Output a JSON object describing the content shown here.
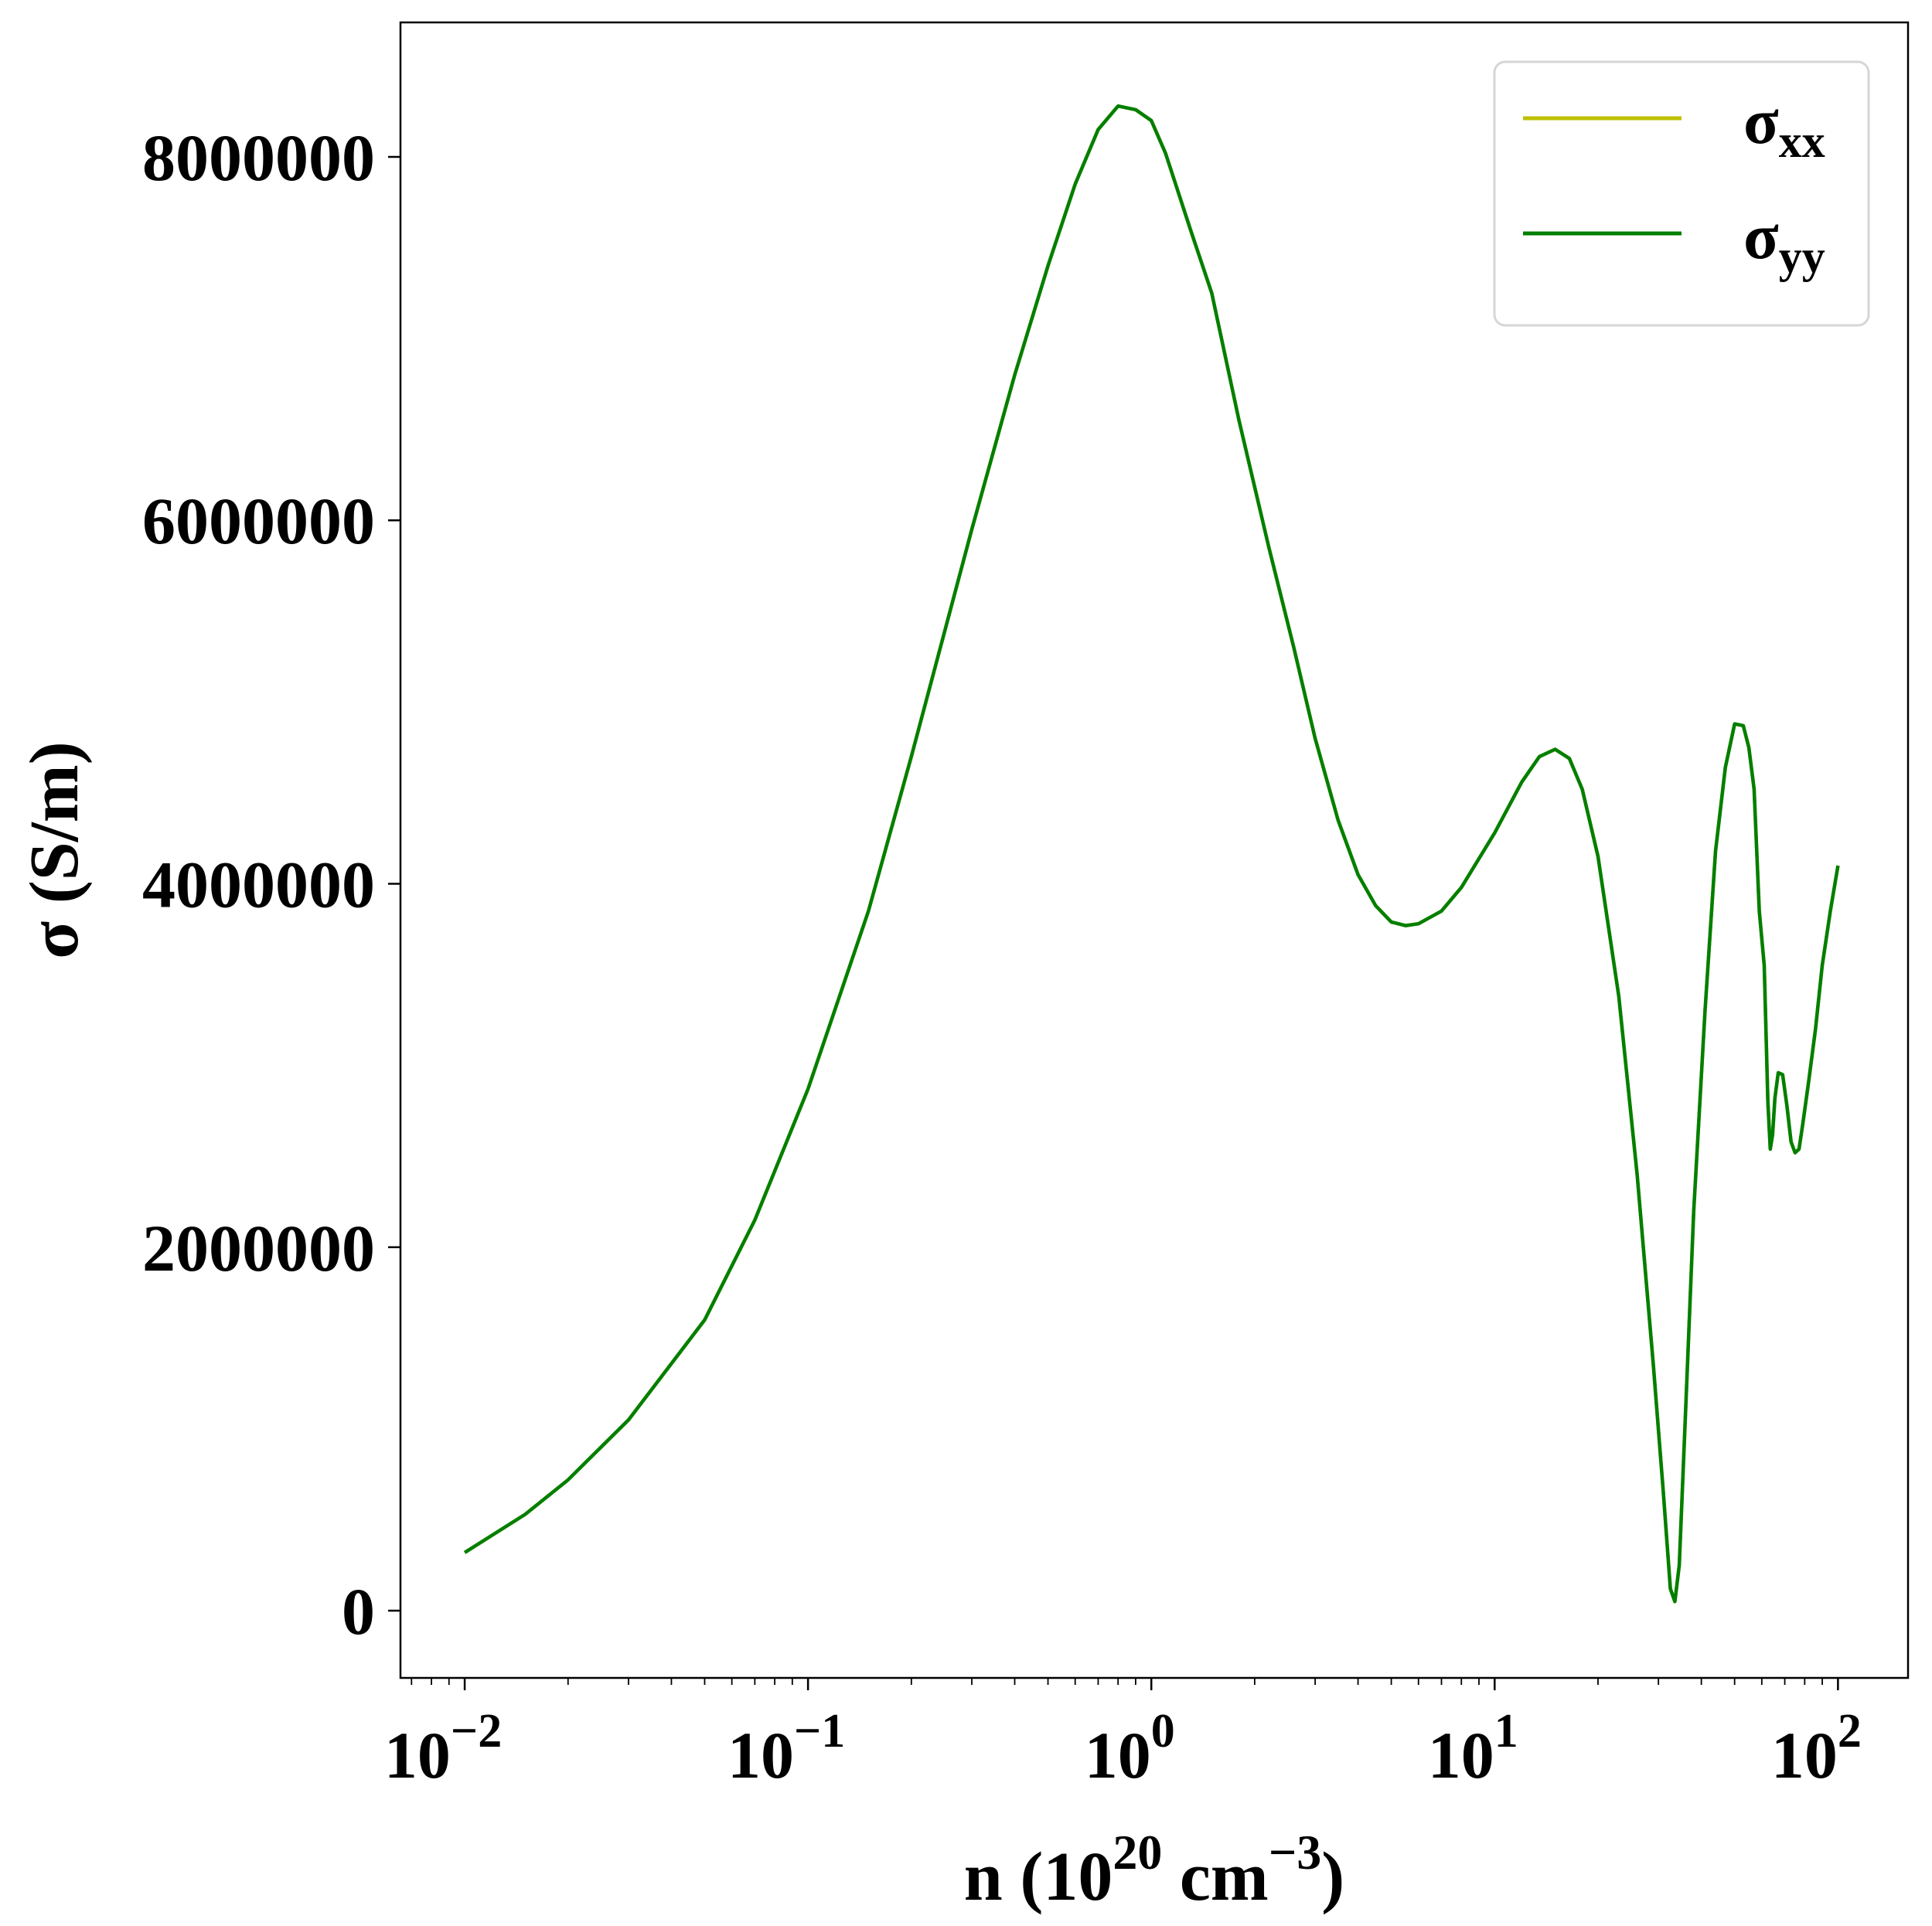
{
  "chart_data": {
    "type": "line",
    "xlabel": "n (10",
    "xlabel_exp": "20",
    "xlabel_unit": " cm",
    "xlabel_unit_exp": "−3",
    "xlabel_close": ")",
    "ylabel": "σ (S/m)",
    "xscale": "log",
    "xlim": [
      0.0065,
      160
    ],
    "ylim": [
      -370000,
      8740000
    ],
    "x_ticks": [
      {
        "value": 0.01,
        "base": "10",
        "exp": "−2"
      },
      {
        "value": 0.1,
        "base": "10",
        "exp": "−1"
      },
      {
        "value": 1,
        "base": "10",
        "exp": "0"
      },
      {
        "value": 10,
        "base": "10",
        "exp": "1"
      },
      {
        "value": 100,
        "base": "10",
        "exp": "2"
      }
    ],
    "y_ticks": [
      {
        "value": 0,
        "label": "0"
      },
      {
        "value": 2000000,
        "label": "2000000"
      },
      {
        "value": 4000000,
        "label": "4000000"
      },
      {
        "value": 6000000,
        "label": "6000000"
      },
      {
        "value": 8000000,
        "label": "8000000"
      }
    ],
    "legend_position": "top-right",
    "grid": false,
    "series": [
      {
        "name": "σ",
        "subscript": "xx",
        "color": "#bfbf00",
        "x": [
          0.01,
          0.015,
          0.02,
          0.03,
          0.05,
          0.07,
          0.1,
          0.15,
          0.2,
          0.3,
          0.4,
          0.5,
          0.6,
          0.7,
          0.8,
          0.9,
          1.0,
          1.1,
          1.3,
          1.5,
          1.8,
          2.2,
          2.6,
          3.0,
          3.5,
          4.0,
          4.5,
          5.0,
          5.5,
          6.0,
          7.0,
          8.0,
          10.0,
          12.0,
          13.5,
          15.0,
          16.5,
          18.0,
          20.0,
          23.0,
          26.0,
          29.0,
          31.0,
          32.5,
          33.5,
          34.5,
          36.0,
          38.0,
          41.0,
          44.0,
          47.0,
          50.0,
          53.0,
          55.0,
          57.0,
          59.0,
          61.0,
          62.5,
          63.5,
          64.5,
          65.5,
          67.0,
          69.0,
          71.0,
          73.0,
          75.0,
          77.0,
          79.0,
          82.0,
          86.0,
          90.0,
          95.0,
          100.0
        ],
        "y": [
          320000,
          530000,
          720000,
          1050000,
          1600000,
          2150000,
          2870000,
          3850000,
          4700000,
          5950000,
          6800000,
          7400000,
          7850000,
          8150000,
          8280000,
          8260000,
          8200000,
          8020000,
          7600000,
          7250000,
          6550000,
          5850000,
          5300000,
          4800000,
          4350000,
          4050000,
          3880000,
          3790000,
          3770000,
          3780000,
          3850000,
          3980000,
          4280000,
          4560000,
          4700000,
          4740000,
          4690000,
          4520000,
          4150000,
          3380000,
          2400000,
          1350000,
          650000,
          120000,
          50000,
          250000,
          1100000,
          2200000,
          3300000,
          4180000,
          4640000,
          4880000,
          4870000,
          4750000,
          4520000,
          3850000,
          3550000,
          2800000,
          2540000,
          2620000,
          2820000,
          2960000,
          2950000,
          2780000,
          2580000,
          2520000,
          2540000,
          2680000,
          2900000,
          3200000,
          3550000,
          3850000,
          4100000
        ]
      },
      {
        "name": "σ",
        "subscript": "yy",
        "color": "#007f00",
        "x": [
          0.01,
          0.015,
          0.02,
          0.03,
          0.05,
          0.07,
          0.1,
          0.15,
          0.2,
          0.3,
          0.4,
          0.5,
          0.6,
          0.7,
          0.8,
          0.9,
          1.0,
          1.1,
          1.3,
          1.5,
          1.8,
          2.2,
          2.6,
          3.0,
          3.5,
          4.0,
          4.5,
          5.0,
          5.5,
          6.0,
          7.0,
          8.0,
          10.0,
          12.0,
          13.5,
          15.0,
          16.5,
          18.0,
          20.0,
          23.0,
          26.0,
          29.0,
          31.0,
          32.5,
          33.5,
          34.5,
          36.0,
          38.0,
          41.0,
          44.0,
          47.0,
          50.0,
          53.0,
          55.0,
          57.0,
          59.0,
          61.0,
          62.5,
          63.5,
          64.5,
          65.5,
          67.0,
          69.0,
          71.0,
          73.0,
          75.0,
          77.0,
          79.0,
          82.0,
          86.0,
          90.0,
          95.0,
          100.0
        ],
        "y": [
          320000,
          530000,
          720000,
          1050000,
          1600000,
          2150000,
          2870000,
          3850000,
          4700000,
          5950000,
          6800000,
          7400000,
          7850000,
          8150000,
          8280000,
          8260000,
          8200000,
          8020000,
          7600000,
          7250000,
          6550000,
          5850000,
          5300000,
          4800000,
          4350000,
          4050000,
          3880000,
          3790000,
          3770000,
          3780000,
          3850000,
          3980000,
          4280000,
          4560000,
          4700000,
          4740000,
          4690000,
          4520000,
          4150000,
          3380000,
          2400000,
          1350000,
          650000,
          120000,
          50000,
          250000,
          1100000,
          2200000,
          3300000,
          4180000,
          4640000,
          4880000,
          4870000,
          4750000,
          4520000,
          3850000,
          3550000,
          2800000,
          2540000,
          2620000,
          2820000,
          2960000,
          2950000,
          2780000,
          2580000,
          2520000,
          2540000,
          2680000,
          2900000,
          3200000,
          3550000,
          3850000,
          4100000
        ]
      }
    ]
  }
}
